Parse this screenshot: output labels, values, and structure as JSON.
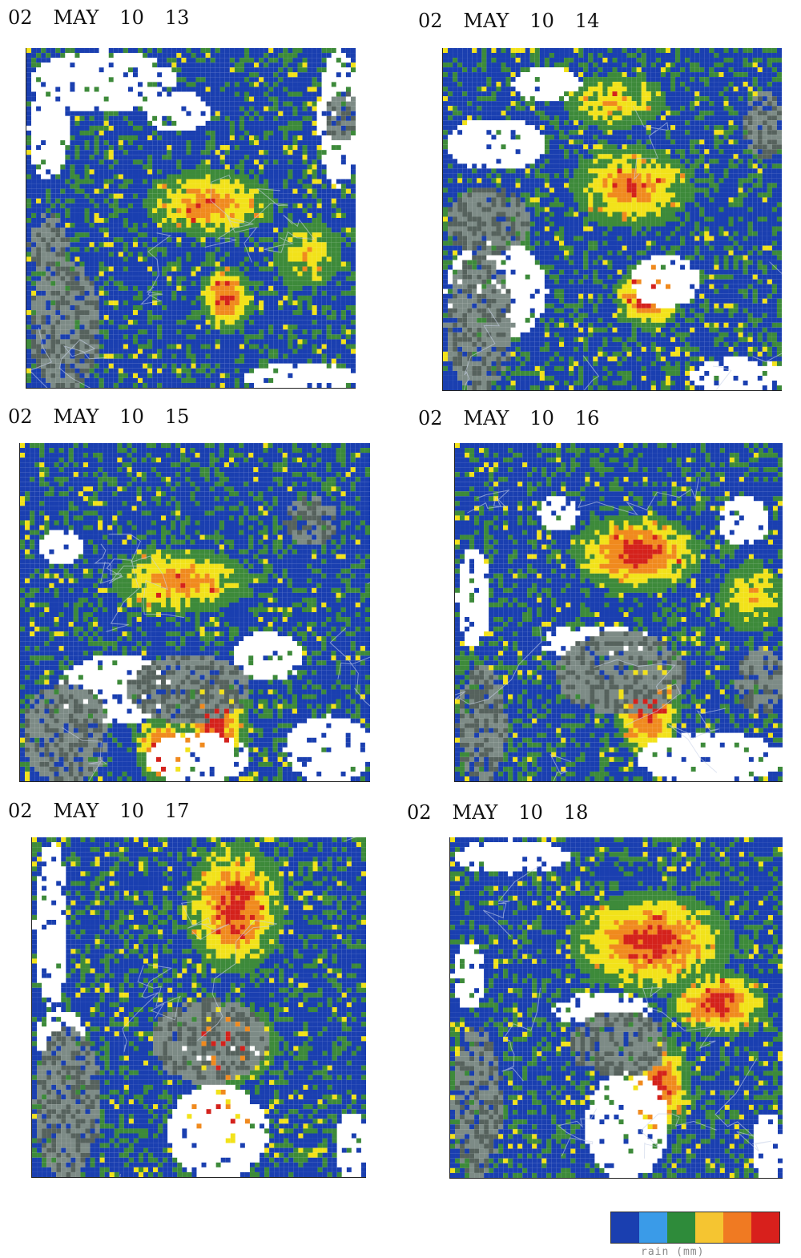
{
  "panels": [
    {
      "id": "p1",
      "day": "02",
      "month": "MAY",
      "hour": "10",
      "minute": "13"
    },
    {
      "id": "p2",
      "day": "02",
      "month": "MAY",
      "hour": "10",
      "minute": "14"
    },
    {
      "id": "p3",
      "day": "02",
      "month": "MAY",
      "hour": "10",
      "minute": "15"
    },
    {
      "id": "p4",
      "day": "02",
      "month": "MAY",
      "hour": "10",
      "minute": "16"
    },
    {
      "id": "p5",
      "day": "02",
      "month": "MAY",
      "hour": "10",
      "minute": "17"
    },
    {
      "id": "p6",
      "day": "02",
      "month": "MAY",
      "hour": "10",
      "minute": "18"
    }
  ],
  "legend": {
    "colors": [
      "#1a3fb0",
      "#3a9be8",
      "#2e8b3a",
      "#f5c531",
      "#f07a22",
      "#d8201c"
    ],
    "caption": "rain (mm)"
  },
  "palette": {
    "water": "#ffffff",
    "land": "#7d8b86",
    "land_dark": "#56625d",
    "blue": "#1a3fb0",
    "green": "#3d8a3a",
    "yellow": "#f2e21a",
    "orange": "#f08a1e",
    "red": "#d4221c",
    "boundary": "#c8d2e8"
  }
}
